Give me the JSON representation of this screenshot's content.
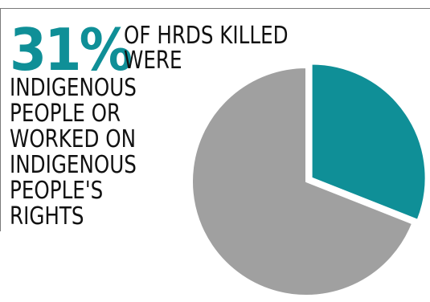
{
  "headline": {
    "percent": "31%",
    "lines": [
      "OF HRDS KILLED",
      "WERE",
      "INDIGENOUS",
      "PEOPLE OR",
      "WORKED ON",
      "INDIGENOUS",
      "PEOPLE'S",
      "RIGHTS"
    ]
  },
  "colors": {
    "accent": "#0f8f97",
    "remainder": "#a0a0a0",
    "text": "#111111"
  },
  "chart_data": {
    "type": "pie",
    "slices": [
      {
        "value": 31,
        "color": "#0f8f97",
        "exploded": true
      },
      {
        "value": 69,
        "color": "#a0a0a0",
        "exploded": false
      }
    ]
  }
}
